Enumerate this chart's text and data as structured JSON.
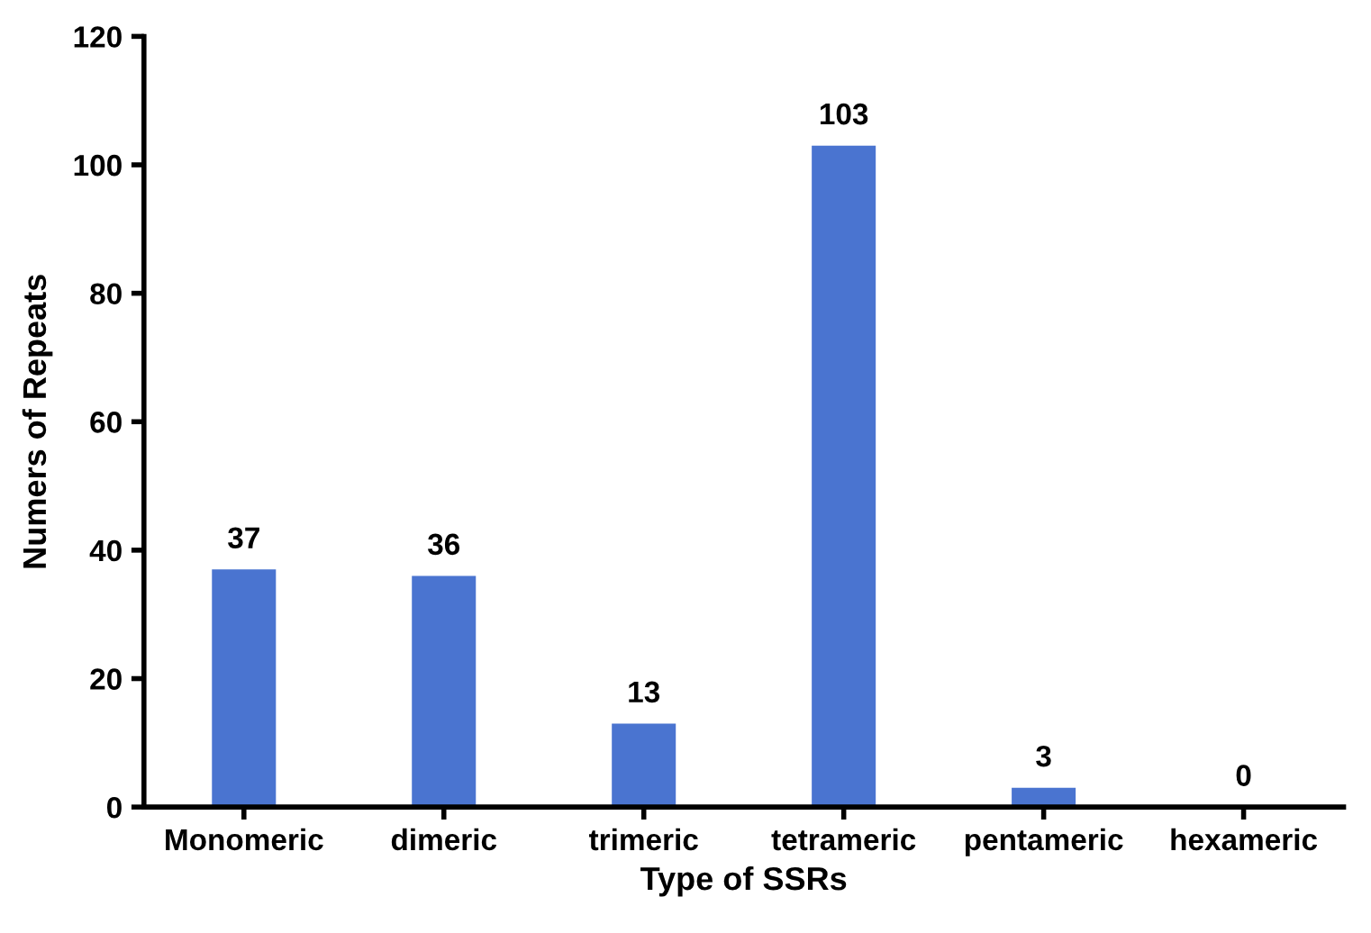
{
  "chart_data": {
    "type": "bar",
    "xlabel": "Type of SSRs",
    "ylabel": "Numers of Repeats",
    "categories": [
      "Monomeric",
      "dimeric",
      "trimeric",
      "tetrameric",
      "pentameric",
      "hexameric"
    ],
    "values": [
      37,
      36,
      13,
      103,
      3,
      0
    ],
    "color": "#4a74d0",
    "ylim": [
      0,
      120
    ],
    "yticks": [
      0,
      20,
      40,
      60,
      80,
      100,
      120
    ],
    "grid": false,
    "data_labels": true
  }
}
